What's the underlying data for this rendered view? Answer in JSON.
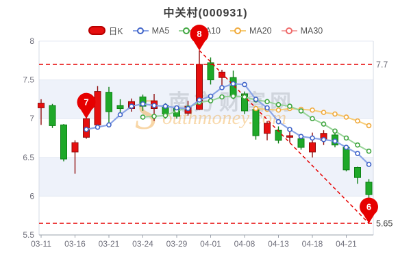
{
  "palette": {
    "up": "#e60f0f",
    "up_border": "#8e0b0b",
    "down": "#1fa829",
    "down_border": "#0c7f14",
    "ma5": "#3f63c8",
    "ma5_line": "#8aa4e6",
    "ma10": "#3fa53f",
    "ma10_line": "#97d497",
    "ma20": "#f0a93b",
    "ma20_line": "#f7cd77",
    "ma30": "#ef6b6b",
    "ma30_line": "#f4a9a9",
    "kline": "#e60f0f",
    "kline_border": "#b80000",
    "ref": "#e60000",
    "pin": "#e60000",
    "grid": "#e4e9f3",
    "band": "#eef2fa",
    "border": "#d6dbe4",
    "axis": "#9aa0ab",
    "text": "#6e6e7a",
    "wm_grey": "#b3b9c2",
    "wm_orange": "#f0a63c"
  },
  "chart_data": {
    "type": "candlestick",
    "title": "中关村(000931)",
    "ylim": [
      5.5,
      8
    ],
    "y_ticks": [
      "8",
      "7.5",
      "7",
      "6.5",
      "6",
      "5.5"
    ],
    "label_indices": [
      0,
      3,
      6,
      9,
      12,
      15,
      18,
      21,
      24,
      27
    ],
    "x_labels": [
      "03-11",
      "03-16",
      "03-21",
      "03-24",
      "03-29",
      "04-01",
      "04-08",
      "04-13",
      "04-18",
      "04-21"
    ],
    "legend": [
      {
        "label": "日K",
        "color": "#e60f0f"
      },
      {
        "label": "MA5",
        "color": "#3f63c8"
      },
      {
        "label": "MA10",
        "color": "#3fa53f"
      },
      {
        "label": "MA20",
        "color": "#f0a93b"
      },
      {
        "label": "MA30",
        "color": "#ef6b6b"
      }
    ],
    "candles": [
      {
        "date": "03-11",
        "open": 7.14,
        "close": 7.2,
        "low": 6.92,
        "high": 7.25
      },
      {
        "date": "03-14",
        "open": 7.17,
        "close": 6.91,
        "low": 6.88,
        "high": 7.19
      },
      {
        "date": "03-15",
        "open": 6.92,
        "close": 6.48,
        "low": 6.45,
        "high": 6.93
      },
      {
        "date": "03-16",
        "open": 6.57,
        "close": 6.69,
        "low": 6.29,
        "high": 6.72
      },
      {
        "date": "03-17",
        "open": 6.76,
        "close": 7.0,
        "low": 6.74,
        "high": 7.06
      },
      {
        "date": "03-18",
        "open": 6.92,
        "close": 7.35,
        "low": 6.9,
        "high": 7.42
      },
      {
        "date": "03-21",
        "open": 7.34,
        "close": 7.09,
        "low": 6.92,
        "high": 7.41
      },
      {
        "date": "03-22",
        "open": 7.17,
        "close": 7.13,
        "low": 7.08,
        "high": 7.25
      },
      {
        "date": "03-23",
        "open": 7.13,
        "close": 7.22,
        "low": 7.09,
        "high": 7.26
      },
      {
        "date": "03-24",
        "open": 7.28,
        "close": 7.16,
        "low": 7.1,
        "high": 7.31
      },
      {
        "date": "03-25",
        "open": 7.13,
        "close": 7.23,
        "low": 6.97,
        "high": 7.32
      },
      {
        "date": "03-28",
        "open": 7.17,
        "close": 7.06,
        "low": 7.0,
        "high": 7.2
      },
      {
        "date": "03-29",
        "open": 7.13,
        "close": 7.03,
        "low": 7.0,
        "high": 7.15
      },
      {
        "date": "03-30",
        "open": 7.07,
        "close": 7.16,
        "low": 7.04,
        "high": 7.23
      },
      {
        "date": "03-31",
        "open": 7.12,
        "close": 7.7,
        "low": 7.11,
        "high": 7.88
      },
      {
        "date": "04-01",
        "open": 7.72,
        "close": 7.5,
        "low": 7.44,
        "high": 7.79
      },
      {
        "date": "04-06",
        "open": 7.53,
        "close": 7.6,
        "low": 7.43,
        "high": 7.63
      },
      {
        "date": "04-07",
        "open": 7.53,
        "close": 7.28,
        "low": 7.25,
        "high": 7.62
      },
      {
        "date": "04-08",
        "open": 7.32,
        "close": 7.1,
        "low": 7.06,
        "high": 7.35
      },
      {
        "date": "04-11",
        "open": 7.12,
        "close": 6.78,
        "low": 6.73,
        "high": 7.14
      },
      {
        "date": "04-12",
        "open": 6.81,
        "close": 6.94,
        "low": 6.72,
        "high": 6.97
      },
      {
        "date": "04-13",
        "open": 6.85,
        "close": 6.72,
        "low": 6.68,
        "high": 6.9
      },
      {
        "date": "04-14",
        "open": 6.76,
        "close": 6.78,
        "low": 6.69,
        "high": 6.85
      },
      {
        "date": "04-15",
        "open": 6.74,
        "close": 6.63,
        "low": 6.6,
        "high": 6.77
      },
      {
        "date": "04-18",
        "open": 6.57,
        "close": 6.69,
        "low": 6.5,
        "high": 6.82
      },
      {
        "date": "04-19",
        "open": 6.72,
        "close": 6.81,
        "low": 6.66,
        "high": 6.85
      },
      {
        "date": "04-20",
        "open": 6.79,
        "close": 6.66,
        "low": 6.63,
        "high": 6.84
      },
      {
        "date": "04-21",
        "open": 6.63,
        "close": 6.34,
        "low": 6.32,
        "high": 6.66
      },
      {
        "date": "04-22",
        "open": 6.37,
        "close": 6.24,
        "low": 6.16,
        "high": 6.38
      },
      {
        "date": "04-25",
        "open": 6.18,
        "close": 6.02,
        "low": 5.65,
        "high": 6.22
      }
    ],
    "series": [
      {
        "name": "MA5",
        "start_index": 4,
        "values": [
          6.86,
          6.89,
          6.92,
          7.05,
          7.16,
          7.19,
          7.17,
          7.16,
          7.14,
          7.13,
          7.24,
          7.29,
          7.4,
          7.45,
          7.44,
          7.25,
          7.14,
          6.96,
          6.86,
          6.77,
          6.75,
          6.73,
          6.71,
          6.63,
          6.55,
          6.41
        ]
      },
      {
        "name": "MA10",
        "start_index": 9,
        "values": [
          7.02,
          7.03,
          7.04,
          7.1,
          7.14,
          7.21,
          7.23,
          7.28,
          7.29,
          7.28,
          7.24,
          7.22,
          7.18,
          7.16,
          7.1,
          7.0,
          6.93,
          6.84,
          6.75,
          6.66,
          6.58
        ]
      },
      {
        "name": "MA20",
        "start_index": 19,
        "values": [
          7.13,
          7.12,
          7.11,
          7.13,
          7.12,
          7.11,
          7.08,
          7.06,
          7.02,
          6.97,
          6.91
        ]
      },
      {
        "name": "MA30",
        "start_index": 30,
        "values": []
      }
    ],
    "ref_lines": [
      {
        "value": 7.7,
        "label": "7.7",
        "label_color": "#6e6e7a"
      },
      {
        "value": 5.65,
        "label": "5.65",
        "label_color": "#333333"
      }
    ],
    "trend_line": {
      "from": {
        "candle_index": 14,
        "value": 7.88
      },
      "to": {
        "candle_index": 29,
        "value": 5.65
      }
    },
    "markers": [
      {
        "label": "7",
        "candle_index": 4,
        "value": 7.0
      },
      {
        "label": "8",
        "candle_index": 14,
        "value": 7.88
      },
      {
        "label": "6",
        "candle_index": 29,
        "value": 5.65
      }
    ],
    "watermark": {
      "initial": "S",
      "domain": "outhmoney.com",
      "site": "南方财富网"
    }
  }
}
